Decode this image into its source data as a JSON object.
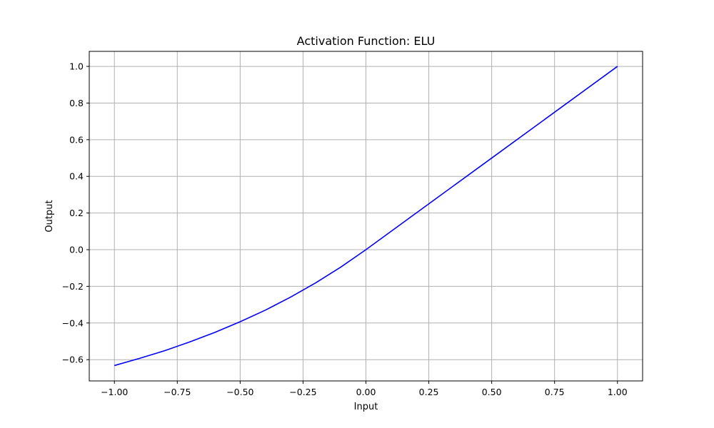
{
  "chart_data": {
    "type": "line",
    "title": "Activation Function: ELU",
    "xlabel": "Input",
    "ylabel": "Output",
    "xlim": [
      -1.1,
      1.1
    ],
    "ylim": [
      -0.716,
      1.082
    ],
    "grid": true,
    "x_ticks": [
      -1.0,
      -0.75,
      -0.5,
      -0.25,
      0.0,
      0.25,
      0.5,
      0.75,
      1.0
    ],
    "x_tick_labels": [
      "−1.00",
      "−0.75",
      "−0.50",
      "−0.25",
      "0.00",
      "0.25",
      "0.50",
      "0.75",
      "1.00"
    ],
    "y_ticks": [
      -0.6,
      -0.4,
      -0.2,
      0.0,
      0.2,
      0.4,
      0.6,
      0.8,
      1.0
    ],
    "y_tick_labels": [
      "−0.6",
      "−0.4",
      "−0.2",
      "0.0",
      "0.2",
      "0.4",
      "0.6",
      "0.8",
      "1.0"
    ],
    "series": [
      {
        "color": "#0000ff",
        "x": [
          -1.0,
          -0.9,
          -0.8,
          -0.7,
          -0.6,
          -0.5,
          -0.4,
          -0.3,
          -0.2,
          -0.1,
          0.0,
          0.25,
          0.5,
          0.75,
          1.0
        ],
        "y": [
          -0.632,
          -0.593,
          -0.551,
          -0.503,
          -0.451,
          -0.393,
          -0.33,
          -0.259,
          -0.181,
          -0.095,
          0.0,
          0.25,
          0.5,
          0.75,
          1.0
        ]
      }
    ]
  }
}
